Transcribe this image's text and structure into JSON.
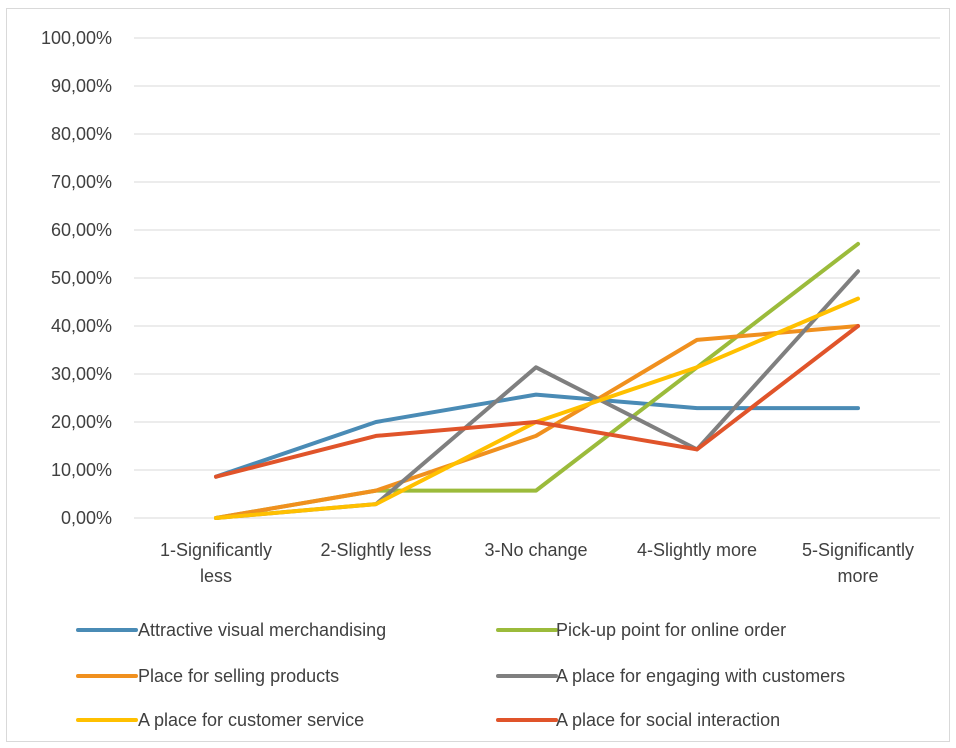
{
  "chart_data": {
    "type": "line",
    "categories": [
      "1-Significantly less",
      "2-Slightly less",
      "3-No change",
      "4-Slightly more",
      "5-Significantly more"
    ],
    "category_lines": [
      [
        "1-Significantly",
        "less"
      ],
      [
        "2-Slightly less"
      ],
      [
        "3-No change"
      ],
      [
        "4-Slightly more"
      ],
      [
        "5-Significantly",
        "more"
      ]
    ],
    "ylim": [
      0,
      100
    ],
    "yticks": [
      "0,00%",
      "10,00%",
      "20,00%",
      "30,00%",
      "40,00%",
      "50,00%",
      "60,00%",
      "70,00%",
      "80,00%",
      "90,00%",
      "100,00%"
    ],
    "grid": true,
    "legend_position": "bottom",
    "series": [
      {
        "name": "Attractive visual merchandising",
        "color": "#4a8bb5",
        "values": [
          8.6,
          20.0,
          25.7,
          22.9,
          22.9
        ]
      },
      {
        "name": "Pick-up point for online order",
        "color": "#9bbb3b",
        "values": [
          0.0,
          5.7,
          5.7,
          31.4,
          57.1
        ]
      },
      {
        "name": "Place for selling products",
        "color": "#f0901e",
        "values": [
          0.0,
          5.7,
          17.1,
          37.1,
          40.0
        ]
      },
      {
        "name": "A place for engaging with customers",
        "color": "#7f7f7f",
        "values": [
          0.0,
          2.9,
          31.4,
          14.3,
          51.4
        ]
      },
      {
        "name": "A place for customer service",
        "color": "#ffc000",
        "values": [
          0.0,
          2.9,
          20.0,
          31.4,
          45.7
        ]
      },
      {
        "name": "A place for social interaction",
        "color": "#e0542a",
        "values": [
          8.6,
          17.1,
          20.0,
          14.3,
          40.0
        ]
      }
    ]
  }
}
